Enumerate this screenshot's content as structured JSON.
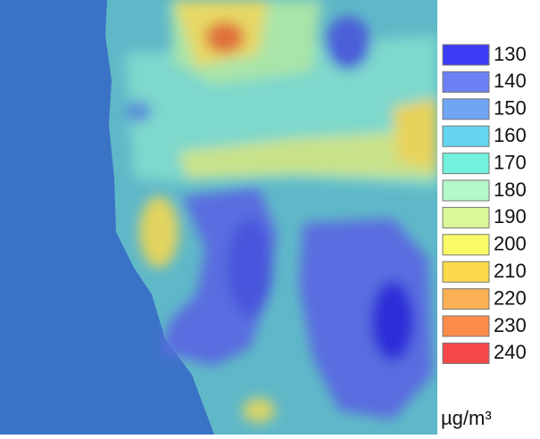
{
  "legend": {
    "items": [
      {
        "value": 130,
        "color": "#3c3cf5"
      },
      {
        "value": 140,
        "color": "#6b80f2"
      },
      {
        "value": 150,
        "color": "#6fa6f3"
      },
      {
        "value": 160,
        "color": "#66d5f2"
      },
      {
        "value": 170,
        "color": "#72f2dc"
      },
      {
        "value": 180,
        "color": "#b4f7c8"
      },
      {
        "value": 190,
        "color": "#dcf79a"
      },
      {
        "value": 200,
        "color": "#fafa66"
      },
      {
        "value": 210,
        "color": "#fbd94a"
      },
      {
        "value": 220,
        "color": "#fbb056"
      },
      {
        "value": 230,
        "color": "#fb8c4a"
      },
      {
        "value": 240,
        "color": "#f44848"
      }
    ],
    "unit": "µg/m³"
  }
}
